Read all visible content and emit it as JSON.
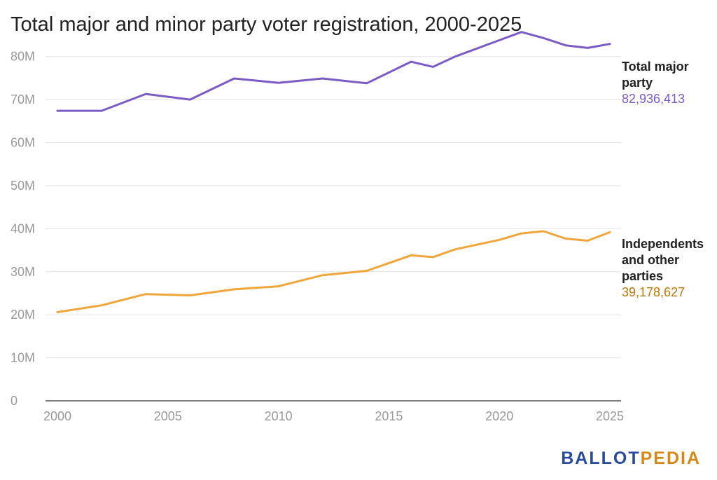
{
  "chart_data": {
    "type": "line",
    "title": "Total major and minor party voter registration, 2000-2025",
    "xlabel": "",
    "ylabel": "",
    "xlim": [
      2000,
      2025
    ],
    "ylim": [
      0,
      85000000
    ],
    "grid": true,
    "x_ticks": [
      "2000",
      "2005",
      "2010",
      "2015",
      "2020",
      "2025"
    ],
    "y_ticks": [
      "0",
      "10M",
      "20M",
      "30M",
      "40M",
      "50M",
      "60M",
      "70M",
      "80M"
    ],
    "legend_placement": "right (direct labels)",
    "series": [
      {
        "name": "Total major party",
        "label_lines": [
          "Total major",
          "party"
        ],
        "value_label": "82,936,413",
        "color": "#7b5cc5",
        "label_color": "#7b5cc5",
        "x": [
          2000,
          2002,
          2004,
          2006,
          2008,
          2010,
          2012,
          2014,
          2016,
          2017,
          2018,
          2020,
          2021,
          2022,
          2023,
          2024,
          2025
        ],
        "values": [
          67400000,
          67400000,
          71300000,
          70000000,
          74900000,
          73900000,
          74900000,
          73800000,
          78800000,
          77600000,
          80000000,
          83800000,
          85700000,
          84300000,
          82600000,
          82000000,
          82936413
        ]
      },
      {
        "name": "Independents and other parties",
        "label_lines": [
          "Independents",
          "and other",
          "parties"
        ],
        "value_label": "39,178,627",
        "color": "#f0a63a",
        "label_color": "#b87a0c",
        "x": [
          2000,
          2002,
          2004,
          2006,
          2008,
          2010,
          2012,
          2014,
          2016,
          2017,
          2018,
          2020,
          2021,
          2022,
          2023,
          2024,
          2025
        ],
        "values": [
          20600000,
          22200000,
          24800000,
          24500000,
          25900000,
          26600000,
          29200000,
          30200000,
          33800000,
          33400000,
          35200000,
          37400000,
          38900000,
          39400000,
          37700000,
          37200000,
          39178627
        ]
      }
    ]
  },
  "branding": {
    "logo_part1": "BALLOT",
    "logo_part2": "PEDIA",
    "logo_color1": "#2a4a9a",
    "logo_color2": "#d4891a"
  }
}
